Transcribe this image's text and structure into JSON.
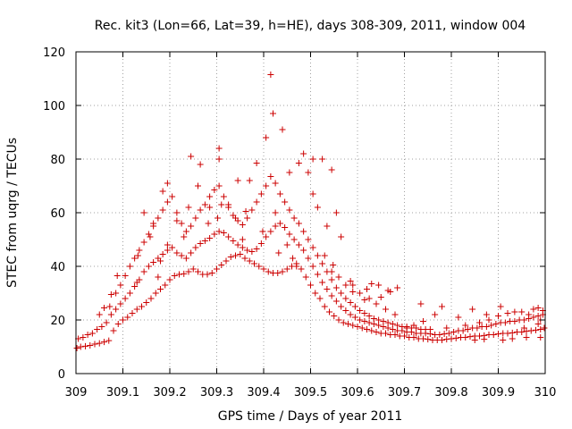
{
  "chart_data": {
    "type": "scatter",
    "title": "Rec. kit3 (Lon=66, Lat=39, h=HE), days 308-309, 2011, window 004",
    "xlabel": "GPS time / Days of year 2011",
    "ylabel": "STEC from uqrg / TECUs",
    "xlim": [
      309,
      310
    ],
    "ylim": [
      0,
      120
    ],
    "grid": true,
    "marker": "+",
    "color": "#cc0000",
    "x_ticks": [
      {
        "value": 309.0,
        "label": "309"
      },
      {
        "value": 309.1,
        "label": "309.1"
      },
      {
        "value": 309.2,
        "label": "309.2"
      },
      {
        "value": 309.3,
        "label": "309.3"
      },
      {
        "value": 309.4,
        "label": "309.4"
      },
      {
        "value": 309.5,
        "label": "309.5"
      },
      {
        "value": 309.6,
        "label": "309.6"
      },
      {
        "value": 309.7,
        "label": "309.7"
      },
      {
        "value": 309.8,
        "label": "309.8"
      },
      {
        "value": 309.9,
        "label": "309.9"
      },
      {
        "value": 310.0,
        "label": "310"
      }
    ],
    "y_ticks": [
      {
        "value": 0,
        "label": "0"
      },
      {
        "value": 20,
        "label": "20"
      },
      {
        "value": 40,
        "label": "40"
      },
      {
        "value": 60,
        "label": "60"
      },
      {
        "value": 80,
        "label": "80"
      },
      {
        "value": 100,
        "label": "100"
      },
      {
        "value": 120,
        "label": "120"
      }
    ],
    "points": [
      [
        309.002,
        9.5
      ],
      [
        309.01,
        10.0
      ],
      [
        309.02,
        10.2
      ],
      [
        309.03,
        10.5
      ],
      [
        309.04,
        11.0
      ],
      [
        309.05,
        11.3
      ],
      [
        309.06,
        11.8
      ],
      [
        309.07,
        12.3
      ],
      [
        309.08,
        16.0
      ],
      [
        309.09,
        18.5
      ],
      [
        309.1,
        20.0
      ],
      [
        309.11,
        21.0
      ],
      [
        309.12,
        22.5
      ],
      [
        309.13,
        24.0
      ],
      [
        309.14,
        25.0
      ],
      [
        309.15,
        26.5
      ],
      [
        309.16,
        28.0
      ],
      [
        309.17,
        30.0
      ],
      [
        309.18,
        31.5
      ],
      [
        309.19,
        33.0
      ],
      [
        309.2,
        35.0
      ],
      [
        309.21,
        36.5
      ],
      [
        309.22,
        37.0
      ],
      [
        309.23,
        37.2
      ],
      [
        309.24,
        38.0
      ],
      [
        309.25,
        39.0
      ],
      [
        309.26,
        38.0
      ],
      [
        309.27,
        37.0
      ],
      [
        309.28,
        37.0
      ],
      [
        309.29,
        37.5
      ],
      [
        309.3,
        39.0
      ],
      [
        309.31,
        40.5
      ],
      [
        309.32,
        42.0
      ],
      [
        309.33,
        43.5
      ],
      [
        309.34,
        44.0
      ],
      [
        309.35,
        44.5
      ],
      [
        309.36,
        43.0
      ],
      [
        309.37,
        42.0
      ],
      [
        309.38,
        41.0
      ],
      [
        309.39,
        40.0
      ],
      [
        309.4,
        39.0
      ],
      [
        309.41,
        38.0
      ],
      [
        309.42,
        37.5
      ],
      [
        309.43,
        37.5
      ],
      [
        309.44,
        38.0
      ],
      [
        309.45,
        39.0
      ],
      [
        309.46,
        40.0
      ],
      [
        309.47,
        41.0
      ],
      [
        309.48,
        39.0
      ],
      [
        309.49,
        36.0
      ],
      [
        309.5,
        33.0
      ],
      [
        309.51,
        30.0
      ],
      [
        309.52,
        28.0
      ],
      [
        309.53,
        25.0
      ],
      [
        309.54,
        23.0
      ],
      [
        309.55,
        21.5
      ],
      [
        309.56,
        20.0
      ],
      [
        309.57,
        19.0
      ],
      [
        309.58,
        18.5
      ],
      [
        309.59,
        18.0
      ],
      [
        309.6,
        17.5
      ],
      [
        309.61,
        17.0
      ],
      [
        309.62,
        16.5
      ],
      [
        309.63,
        16.0
      ],
      [
        309.64,
        15.5
      ],
      [
        309.65,
        15.0
      ],
      [
        309.66,
        15.0
      ],
      [
        309.67,
        14.5
      ],
      [
        309.68,
        14.5
      ],
      [
        309.69,
        14.0
      ],
      [
        309.7,
        14.0
      ],
      [
        309.71,
        13.5
      ],
      [
        309.72,
        13.5
      ],
      [
        309.73,
        13.0
      ],
      [
        309.74,
        13.0
      ],
      [
        309.75,
        12.8
      ],
      [
        309.76,
        12.5
      ],
      [
        309.77,
        12.5
      ],
      [
        309.78,
        12.5
      ],
      [
        309.79,
        12.8
      ],
      [
        309.8,
        13.0
      ],
      [
        309.81,
        13.2
      ],
      [
        309.82,
        13.5
      ],
      [
        309.83,
        13.5
      ],
      [
        309.84,
        13.8
      ],
      [
        309.85,
        14.0
      ],
      [
        309.86,
        14.0
      ],
      [
        309.87,
        14.2
      ],
      [
        309.88,
        14.5
      ],
      [
        309.89,
        14.5
      ],
      [
        309.9,
        14.8
      ],
      [
        309.91,
        15.0
      ],
      [
        309.92,
        15.0
      ],
      [
        309.93,
        15.2
      ],
      [
        309.94,
        15.5
      ],
      [
        309.95,
        15.5
      ],
      [
        309.96,
        15.8
      ],
      [
        309.97,
        16.0
      ],
      [
        309.98,
        16.2
      ],
      [
        309.99,
        16.5
      ],
      [
        309.998,
        17.0
      ],
      [
        309.005,
        13.0
      ],
      [
        309.015,
        13.5
      ],
      [
        309.025,
        14.5
      ],
      [
        309.035,
        15.0
      ],
      [
        309.045,
        16.5
      ],
      [
        309.055,
        17.5
      ],
      [
        309.065,
        19.0
      ],
      [
        309.075,
        22.0
      ],
      [
        309.085,
        24.0
      ],
      [
        309.095,
        26.0
      ],
      [
        309.105,
        28.0
      ],
      [
        309.115,
        30.0
      ],
      [
        309.125,
        32.5
      ],
      [
        309.135,
        35.0
      ],
      [
        309.145,
        38.0
      ],
      [
        309.155,
        40.0
      ],
      [
        309.165,
        41.5
      ],
      [
        309.175,
        43.0
      ],
      [
        309.185,
        44.5
      ],
      [
        309.195,
        46.0
      ],
      [
        309.205,
        47.0
      ],
      [
        309.215,
        45.0
      ],
      [
        309.225,
        44.0
      ],
      [
        309.235,
        43.0
      ],
      [
        309.245,
        45.0
      ],
      [
        309.255,
        47.0
      ],
      [
        309.265,
        48.5
      ],
      [
        309.275,
        49.5
      ],
      [
        309.285,
        50.5
      ],
      [
        309.295,
        52.0
      ],
      [
        309.305,
        53.0
      ],
      [
        309.315,
        52.5
      ],
      [
        309.325,
        51.0
      ],
      [
        309.335,
        49.5
      ],
      [
        309.345,
        48.0
      ],
      [
        309.355,
        47.0
      ],
      [
        309.365,
        46.0
      ],
      [
        309.375,
        45.5
      ],
      [
        309.385,
        46.5
      ],
      [
        309.395,
        48.5
      ],
      [
        309.405,
        51.0
      ],
      [
        309.415,
        53.0
      ],
      [
        309.425,
        55.0
      ],
      [
        309.435,
        56.0
      ],
      [
        309.445,
        54.5
      ],
      [
        309.455,
        52.0
      ],
      [
        309.465,
        50.0
      ],
      [
        309.475,
        48.0
      ],
      [
        309.485,
        46.0
      ],
      [
        309.495,
        43.0
      ],
      [
        309.505,
        40.0
      ],
      [
        309.515,
        37.0
      ],
      [
        309.525,
        34.0
      ],
      [
        309.535,
        31.5
      ],
      [
        309.545,
        29.0
      ],
      [
        309.555,
        27.0
      ],
      [
        309.565,
        25.0
      ],
      [
        309.575,
        23.5
      ],
      [
        309.585,
        22.0
      ],
      [
        309.595,
        21.0
      ],
      [
        309.605,
        20.0
      ],
      [
        309.615,
        19.5
      ],
      [
        309.625,
        19.0
      ],
      [
        309.635,
        18.5
      ],
      [
        309.645,
        18.0
      ],
      [
        309.655,
        17.5
      ],
      [
        309.665,
        17.0
      ],
      [
        309.675,
        16.5
      ],
      [
        309.685,
        16.0
      ],
      [
        309.695,
        16.0
      ],
      [
        309.705,
        15.5
      ],
      [
        309.715,
        15.5
      ],
      [
        309.725,
        15.0
      ],
      [
        309.735,
        15.0
      ],
      [
        309.745,
        15.0
      ],
      [
        309.755,
        14.8
      ],
      [
        309.765,
        14.5
      ],
      [
        309.775,
        14.5
      ],
      [
        309.785,
        14.8
      ],
      [
        309.795,
        15.0
      ],
      [
        309.805,
        15.5
      ],
      [
        309.815,
        16.0
      ],
      [
        309.825,
        16.0
      ],
      [
        309.835,
        16.5
      ],
      [
        309.845,
        17.0
      ],
      [
        309.855,
        17.0
      ],
      [
        309.865,
        17.5
      ],
      [
        309.875,
        17.5
      ],
      [
        309.885,
        18.0
      ],
      [
        309.895,
        18.5
      ],
      [
        309.905,
        19.0
      ],
      [
        309.915,
        19.0
      ],
      [
        309.925,
        19.5
      ],
      [
        309.935,
        19.5
      ],
      [
        309.945,
        20.0
      ],
      [
        309.955,
        20.0
      ],
      [
        309.965,
        20.5
      ],
      [
        309.975,
        21.0
      ],
      [
        309.985,
        21.5
      ],
      [
        309.995,
        22.0
      ],
      [
        309.085,
        30.0
      ],
      [
        309.095,
        33.0
      ],
      [
        309.105,
        36.5
      ],
      [
        309.115,
        40.0
      ],
      [
        309.125,
        43.0
      ],
      [
        309.135,
        46.0
      ],
      [
        309.145,
        49.0
      ],
      [
        309.155,
        52.0
      ],
      [
        309.165,
        55.0
      ],
      [
        309.175,
        58.0
      ],
      [
        309.185,
        61.0
      ],
      [
        309.195,
        64.0
      ],
      [
        309.205,
        66.0
      ],
      [
        309.215,
        60.0
      ],
      [
        309.225,
        56.0
      ],
      [
        309.235,
        53.0
      ],
      [
        309.245,
        55.0
      ],
      [
        309.255,
        58.0
      ],
      [
        309.265,
        61.0
      ],
      [
        309.275,
        63.0
      ],
      [
        309.285,
        66.0
      ],
      [
        309.295,
        68.5
      ],
      [
        309.305,
        70.0
      ],
      [
        309.315,
        66.0
      ],
      [
        309.325,
        62.0
      ],
      [
        309.335,
        59.0
      ],
      [
        309.345,
        57.0
      ],
      [
        309.355,
        55.5
      ],
      [
        309.365,
        58.0
      ],
      [
        309.375,
        61.0
      ],
      [
        309.385,
        64.0
      ],
      [
        309.395,
        67.0
      ],
      [
        309.405,
        70.0
      ],
      [
        309.415,
        73.5
      ],
      [
        309.425,
        71.0
      ],
      [
        309.435,
        67.0
      ],
      [
        309.445,
        64.0
      ],
      [
        309.455,
        61.0
      ],
      [
        309.465,
        58.0
      ],
      [
        309.475,
        56.0
      ],
      [
        309.485,
        53.0
      ],
      [
        309.495,
        50.0
      ],
      [
        309.505,
        47.0
      ],
      [
        309.515,
        44.0
      ],
      [
        309.525,
        41.0
      ],
      [
        309.535,
        38.0
      ],
      [
        309.545,
        35.0
      ],
      [
        309.555,
        32.0
      ],
      [
        309.565,
        30.0
      ],
      [
        309.575,
        28.0
      ],
      [
        309.585,
        26.5
      ],
      [
        309.595,
        25.0
      ],
      [
        309.605,
        23.5
      ],
      [
        309.615,
        22.5
      ],
      [
        309.625,
        21.5
      ],
      [
        309.635,
        20.5
      ],
      [
        309.645,
        20.0
      ],
      [
        309.655,
        19.5
      ],
      [
        309.665,
        19.0
      ],
      [
        309.675,
        18.5
      ],
      [
        309.685,
        18.0
      ],
      [
        309.695,
        17.5
      ],
      [
        309.705,
        17.5
      ],
      [
        309.715,
        17.0
      ],
      [
        309.725,
        17.0
      ],
      [
        309.735,
        16.5
      ],
      [
        309.745,
        16.5
      ],
      [
        309.755,
        16.5
      ],
      [
        309.145,
        60.0
      ],
      [
        309.165,
        56.0
      ],
      [
        309.185,
        68.0
      ],
      [
        309.195,
        71.0
      ],
      [
        309.215,
        57.0
      ],
      [
        309.245,
        81.0
      ],
      [
        309.265,
        78.0
      ],
      [
        309.285,
        62.0
      ],
      [
        309.305,
        84.0
      ],
      [
        309.305,
        80.0
      ],
      [
        309.325,
        63.0
      ],
      [
        309.345,
        72.0
      ],
      [
        309.385,
        78.5
      ],
      [
        309.405,
        88.0
      ],
      [
        309.415,
        111.5
      ],
      [
        309.42,
        97.0
      ],
      [
        309.44,
        91.0
      ],
      [
        309.425,
        60.0
      ],
      [
        309.455,
        75.0
      ],
      [
        309.475,
        78.5
      ],
      [
        309.485,
        82.0
      ],
      [
        309.495,
        75.0
      ],
      [
        309.505,
        80.0
      ],
      [
        309.525,
        80.0
      ],
      [
        309.545,
        76.0
      ],
      [
        309.505,
        67.0
      ],
      [
        309.515,
        62.0
      ],
      [
        309.535,
        55.0
      ],
      [
        309.555,
        60.0
      ],
      [
        309.565,
        51.0
      ],
      [
        309.585,
        34.5
      ],
      [
        309.605,
        30.0
      ],
      [
        309.625,
        28.0
      ],
      [
        309.645,
        33.0
      ],
      [
        309.665,
        31.0
      ],
      [
        309.685,
        32.0
      ],
      [
        309.705,
        17.0
      ],
      [
        309.735,
        26.0
      ],
      [
        309.765,
        22.0
      ],
      [
        309.78,
        25.0
      ],
      [
        309.815,
        21.0
      ],
      [
        309.845,
        24.0
      ],
      [
        309.875,
        22.0
      ],
      [
        309.905,
        25.0
      ],
      [
        309.935,
        23.0
      ],
      [
        309.965,
        22.0
      ],
      [
        309.985,
        24.5
      ],
      [
        309.995,
        23.5
      ],
      [
        309.05,
        22.0
      ],
      [
        309.06,
        24.5
      ],
      [
        309.072,
        25.0
      ],
      [
        309.075,
        29.5
      ],
      [
        309.088,
        36.5
      ],
      [
        309.13,
        34.0
      ],
      [
        309.132,
        44.0
      ],
      [
        309.158,
        51.0
      ],
      [
        309.175,
        36.0
      ],
      [
        309.18,
        42.0
      ],
      [
        309.195,
        48.0
      ],
      [
        309.23,
        51.0
      ],
      [
        309.24,
        62.0
      ],
      [
        309.26,
        70.0
      ],
      [
        309.282,
        56.0
      ],
      [
        309.302,
        58.0
      ],
      [
        309.31,
        63.0
      ],
      [
        309.34,
        58.0
      ],
      [
        309.355,
        50.0
      ],
      [
        309.362,
        60.5
      ],
      [
        309.37,
        72.0
      ],
      [
        309.398,
        53.0
      ],
      [
        309.432,
        45.0
      ],
      [
        309.45,
        48.0
      ],
      [
        309.462,
        43.0
      ],
      [
        309.47,
        40.0
      ],
      [
        309.53,
        44.0
      ],
      [
        309.548,
        40.5
      ],
      [
        309.56,
        36.0
      ],
      [
        309.575,
        33.0
      ],
      [
        309.59,
        30.5
      ],
      [
        309.615,
        27.5
      ],
      [
        309.64,
        26.0
      ],
      [
        309.66,
        24.0
      ],
      [
        309.68,
        22.0
      ],
      [
        309.72,
        18.0
      ],
      [
        309.74,
        19.5
      ],
      [
        309.79,
        17.0
      ],
      [
        309.83,
        18.0
      ],
      [
        309.86,
        19.0
      ],
      [
        309.88,
        20.0
      ],
      [
        309.9,
        21.5
      ],
      [
        309.92,
        22.5
      ],
      [
        309.95,
        23.0
      ],
      [
        309.975,
        24.0
      ],
      [
        309.99,
        20.0
      ],
      [
        309.91,
        12.5
      ],
      [
        309.93,
        13.0
      ],
      [
        309.96,
        13.5
      ],
      [
        309.99,
        13.5
      ],
      [
        309.85,
        12.5
      ],
      [
        309.87,
        12.8
      ],
      [
        309.955,
        17.0
      ],
      [
        309.985,
        18.5
      ],
      [
        309.545,
        38.0
      ],
      [
        309.59,
        33.0
      ],
      [
        309.62,
        31.5
      ],
      [
        309.65,
        28.5
      ],
      [
        309.63,
        33.5
      ],
      [
        309.67,
        30.5
      ]
    ]
  }
}
